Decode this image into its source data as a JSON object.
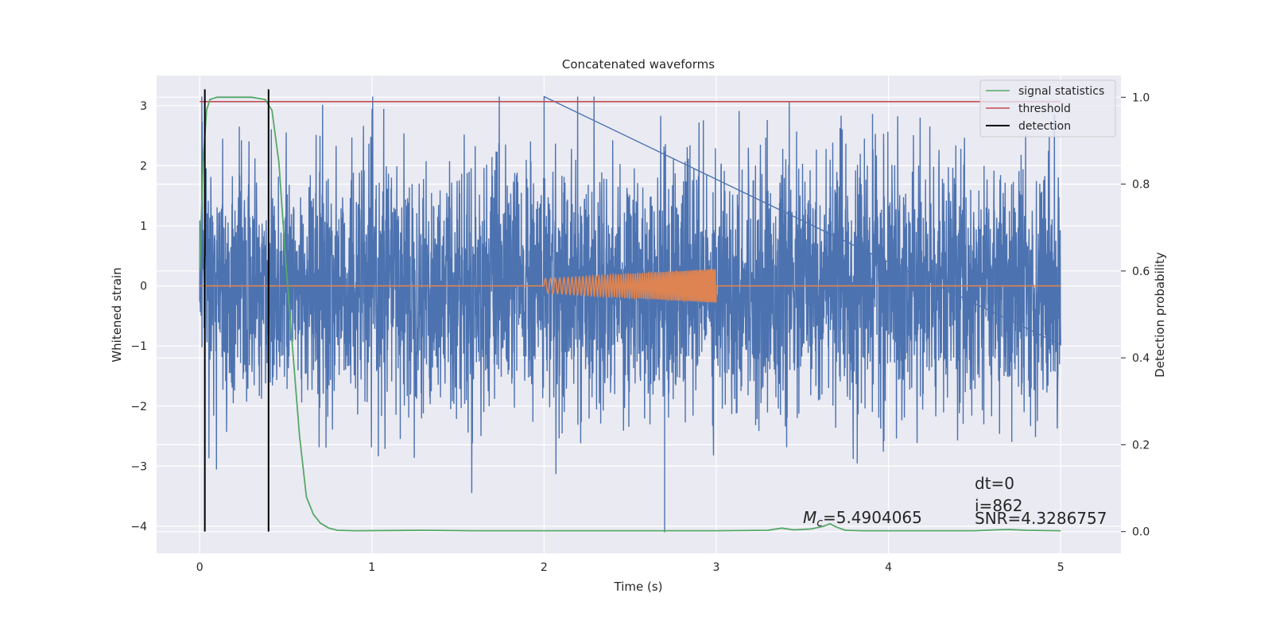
{
  "chart_data": {
    "type": "line",
    "title": "Concatenated waveforms",
    "xlabel": "Time (s)",
    "ylabel": "Whitened strain",
    "y2label": "Detection probability",
    "xlim": [
      -0.25,
      5.35
    ],
    "ylim": [
      -4.45,
      3.5
    ],
    "y2lim": [
      -0.05,
      1.05
    ],
    "xticks": [
      0,
      1,
      2,
      3,
      4,
      5
    ],
    "yticks": [
      -4,
      -3,
      -2,
      -1,
      0,
      1,
      2,
      3
    ],
    "yticklabels": [
      "−4",
      "−3",
      "−2",
      "−1",
      "0",
      "1",
      "2",
      "3"
    ],
    "y2ticks": [
      0.0,
      0.2,
      0.4,
      0.6,
      0.8,
      1.0
    ],
    "y2ticklabels": [
      "0.0",
      "0.2",
      "0.4",
      "0.6",
      "0.8",
      "1.0"
    ],
    "grid": true,
    "legend": {
      "placement": "top-right",
      "entries": [
        {
          "label": "signal statistics",
          "color": "#55a868"
        },
        {
          "label": "threshold",
          "color": "#c44e52"
        },
        {
          "label": "detection",
          "color": "#000000"
        }
      ]
    },
    "series": [
      {
        "key": "strain",
        "color": "#4c72b0",
        "x_range": [
          0,
          5
        ],
        "typical_amplitude": 1.3,
        "max": 3.15,
        "min": -4.1
      },
      {
        "key": "injected_waveform",
        "color": "#dd8452",
        "x_range": [
          2,
          3
        ],
        "amplitude_start": 0.12,
        "amplitude_end": 0.28
      },
      {
        "name": "signal statistics",
        "axis": "right",
        "color": "#55a868",
        "x": [
          0.0,
          0.02,
          0.04,
          0.06,
          0.1,
          0.2,
          0.3,
          0.38,
          0.42,
          0.46,
          0.5,
          0.54,
          0.58,
          0.62,
          0.66,
          0.7,
          0.75,
          0.8,
          0.9,
          1.3,
          1.6,
          2.0,
          2.5,
          3.0,
          3.3,
          3.38,
          3.45,
          3.55,
          3.62,
          3.66,
          3.7,
          3.75,
          3.85,
          4.5,
          4.62,
          4.7,
          4.8,
          5.0
        ],
        "y": [
          0.6,
          0.85,
          0.97,
          0.995,
          1.0,
          1.0,
          1.0,
          0.995,
          0.97,
          0.85,
          0.62,
          0.42,
          0.22,
          0.08,
          0.04,
          0.02,
          0.008,
          0.003,
          0.002,
          0.003,
          0.002,
          0.002,
          0.002,
          0.002,
          0.003,
          0.008,
          0.004,
          0.006,
          0.012,
          0.018,
          0.01,
          0.003,
          0.002,
          0.002,
          0.004,
          0.005,
          0.003,
          0.002
        ]
      },
      {
        "name": "threshold",
        "axis": "right",
        "color": "#c44e52",
        "x": [
          0,
          5
        ],
        "y": [
          0.99,
          0.99
        ]
      },
      {
        "name": "detection",
        "axis": "right",
        "color": "#000000",
        "x": [
          0.03,
          0.4
        ],
        "y_range": [
          0,
          1
        ]
      }
    ],
    "annotations": [
      {
        "key": "mc",
        "text_base": "M",
        "text_sub": "c",
        "text_rest": "=5.4904065",
        "x": 3.52,
        "y": -3.95
      },
      {
        "key": "dt",
        "text": "dt=0",
        "x": 4.5,
        "y": -3.3
      },
      {
        "key": "i",
        "text": "i=862",
        "x": 4.5,
        "y": -3.65
      },
      {
        "key": "snr",
        "text": "SNR=4.3286757",
        "x": 4.5,
        "y": -3.95
      }
    ]
  }
}
